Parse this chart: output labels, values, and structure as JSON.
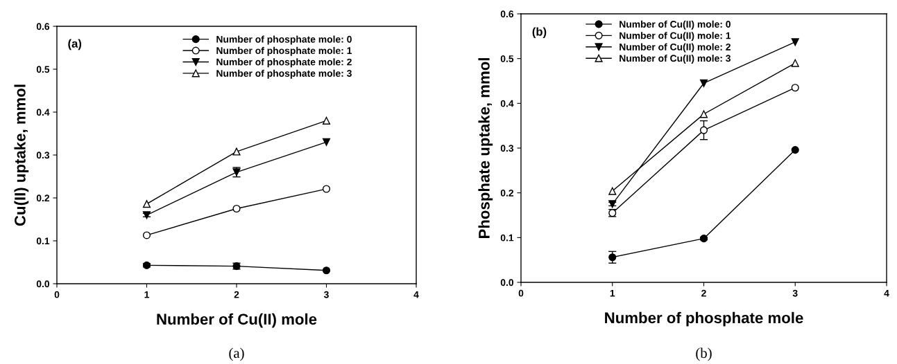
{
  "chart_data": [
    {
      "type": "line",
      "xlabel": "Number of Cu(II) mole",
      "ylabel": "Cu(II) uptake, mmol",
      "x": [
        1,
        2,
        3
      ],
      "xlim": [
        0,
        4
      ],
      "xticks": [
        0,
        1,
        2,
        3,
        4
      ],
      "ylim": [
        0,
        0.6
      ],
      "yticks": [
        {
          "value": 0,
          "label": "0.0"
        },
        0.1,
        0.2,
        0.3,
        0.4,
        0.5,
        0.6
      ],
      "grid": false,
      "legend": "top right",
      "annotations": [
        "(a)",
        "(a)"
      ],
      "series": [
        {
          "name": "Number of phosphate mole: 0",
          "color": "#000000",
          "marker": "circle",
          "values": [
            0.043,
            0.041,
            0.031
          ],
          "errors": [
            0.004,
            0.007,
            null
          ]
        },
        {
          "name": "Number of phosphate mole: 1",
          "color": "#000000",
          "marker": "circle",
          "values": [
            0.113,
            0.175,
            0.221
          ]
        },
        {
          "name": "Number of phosphate mole: 2",
          "color": "#000000",
          "marker": "triangle_down",
          "values": [
            0.16,
            0.26,
            0.33
          ],
          "errors": [
            0.004,
            0.011,
            null
          ]
        },
        {
          "name": "Number of phosphate mole: 3",
          "color": "#000000",
          "marker": "triangle",
          "values": [
            0.186,
            0.308,
            0.38
          ]
        }
      ]
    },
    {
      "type": "line",
      "xlabel": "Number of phosphate mole",
      "ylabel": "Phosphate uptake, mmol",
      "x": [
        1,
        2,
        3
      ],
      "xlim": [
        0,
        4
      ],
      "xticks": [
        0,
        1,
        2,
        3,
        4
      ],
      "ylim": [
        0,
        0.6
      ],
      "yticks": [
        {
          "value": 0,
          "label": "0.0"
        },
        0.1,
        0.2,
        0.3,
        0.4,
        0.5,
        0.6
      ],
      "grid": false,
      "legend": "top",
      "annotations": [
        "(b)",
        "(b)"
      ],
      "series": [
        {
          "name": "Number of Cu(II) mole: 0",
          "color": "#000000",
          "marker": "circle",
          "values": [
            0.056,
            0.098,
            0.296
          ],
          "errors": [
            0.013,
            0.003,
            null
          ]
        },
        {
          "name": "Number of Cu(II) mole: 1",
          "color": "#000000",
          "marker": "circle",
          "values": [
            0.155,
            0.34,
            0.435
          ],
          "errors": [
            0.008,
            0.021,
            null
          ]
        },
        {
          "name": "Number of Cu(II) mole: 2",
          "color": "#000000",
          "marker": "triangle_down",
          "values": [
            0.175,
            0.445,
            0.537
          ],
          "errors": [
            0.004,
            null,
            null
          ]
        },
        {
          "name": "Number of Cu(II) mole: 3",
          "color": "#000000",
          "marker": "triangle",
          "values": [
            0.204,
            0.376,
            0.49
          ]
        }
      ]
    }
  ]
}
